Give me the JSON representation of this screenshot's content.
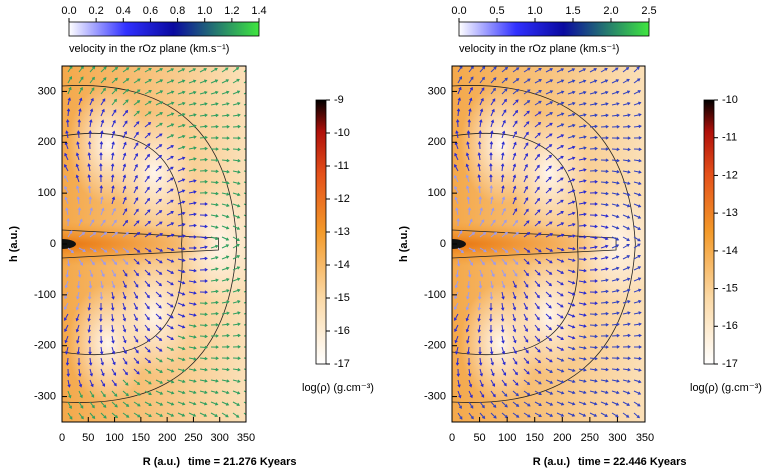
{
  "chart_data": [
    {
      "type": "vector-field",
      "xlabel": "R (a.u.)",
      "ylabel": "h (a.u.)",
      "annotation": "time = 21.276 Kyears",
      "xlim": [
        0,
        350
      ],
      "xticks": [
        0,
        50,
        100,
        150,
        200,
        250,
        300,
        350
      ],
      "ylim": [
        -350,
        350
      ],
      "yticks": [
        -300,
        -200,
        -100,
        0,
        100,
        200,
        300
      ],
      "colorbar": {
        "label": "log(ρ) (g.cm⁻³)",
        "lim": [
          -17,
          -9
        ],
        "ticks": [
          -9,
          -10,
          -11,
          -12,
          -13,
          -14,
          -15,
          -16,
          -17
        ]
      },
      "velocitybar": {
        "label": "velocity in the rOz plane (km.s⁻¹)",
        "lim": [
          0,
          1.4
        ],
        "ticks": [
          {
            "value": 0,
            "label": "0.0"
          },
          0.2,
          0.4,
          0.6,
          0.8,
          {
            "value": 1,
            "label": "1.0"
          },
          1.2,
          1.4
        ]
      }
    },
    {
      "type": "vector-field",
      "xlabel": "R (a.u.)",
      "ylabel": "h (a.u.)",
      "annotation": "time = 22.446 Kyears",
      "xlim": [
        0,
        350
      ],
      "xticks": [
        0,
        50,
        100,
        150,
        200,
        250,
        300,
        350
      ],
      "ylim": [
        -350,
        350
      ],
      "yticks": [
        -300,
        -200,
        -100,
        0,
        100,
        200,
        300
      ],
      "colorbar": {
        "label": "log(ρ) (g.cm⁻³)",
        "lim": [
          -17,
          -10
        ],
        "ticks": [
          -10,
          -11,
          -12,
          -13,
          -14,
          -15,
          -16,
          -17
        ]
      },
      "velocitybar": {
        "label": "velocity in the rOz plane (km.s⁻¹)",
        "lim": [
          0,
          2.5
        ],
        "ticks": [
          {
            "value": 0,
            "label": "0.0"
          },
          0.5,
          {
            "value": 1,
            "label": "1.0"
          },
          1.5,
          {
            "value": 2,
            "label": "2.0"
          },
          2.5
        ]
      }
    }
  ]
}
